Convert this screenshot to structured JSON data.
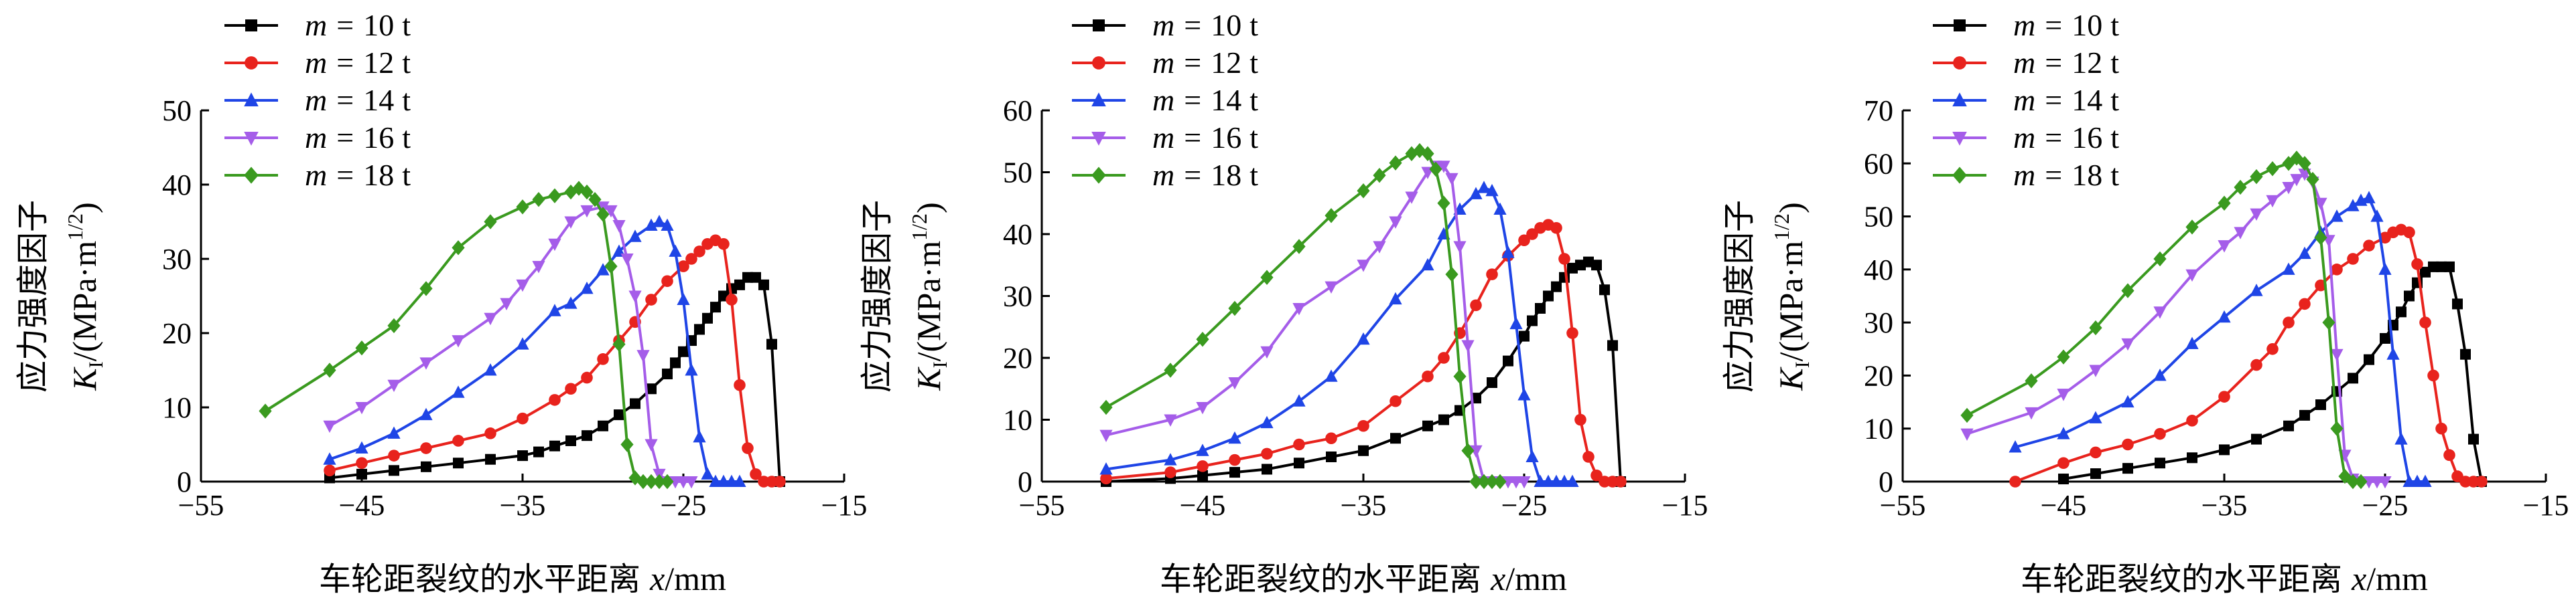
{
  "chart_data": [
    {
      "type": "line",
      "panel": "left",
      "title": "",
      "xlabel": "车轮距裂纹的水平距离 x/mm",
      "xlabel_text": "车轮距裂纹的水平距离",
      "xlabel_var": "x",
      "xlabel_unit": "/mm",
      "ylabel_line1": "应力强度因子",
      "ylabel_var": "K",
      "ylabel_sub": "I",
      "ylabel_unit": "/(MPa·m",
      "ylabel_exp": "1/2",
      "ylabel_close": ")",
      "xlim": [
        -55,
        -15
      ],
      "ylim": [
        0,
        50
      ],
      "xticks": [
        "−55",
        "−45",
        "−35",
        "−25",
        "−15"
      ],
      "xtick_values": [
        -55,
        -45,
        -35,
        -25,
        -15
      ],
      "yticks": [
        "0",
        "10",
        "20",
        "30",
        "40",
        "50"
      ],
      "ytick_values": [
        0,
        10,
        20,
        30,
        40,
        50
      ],
      "legend_position": "top-left",
      "series": [
        {
          "name": "m = 10 t",
          "var": "m",
          "eq": "=",
          "val": "10",
          "unit": "t",
          "color": "#000000",
          "marker": "square",
          "x": [
            -47,
            -45,
            -43,
            -41,
            -39,
            -37,
            -35,
            -34,
            -33,
            -32,
            -31,
            -30,
            -29,
            -28,
            -27,
            -26,
            -25.5,
            -25,
            -24.5,
            -24,
            -23.5,
            -23,
            -22.5,
            -22,
            -21.5,
            -21,
            -20.5,
            -20,
            -19.5,
            -19
          ],
          "y": [
            0.5,
            1,
            1.5,
            2,
            2.5,
            3,
            3.5,
            4,
            4.8,
            5.5,
            6.2,
            7.5,
            9,
            10.5,
            12.5,
            14.5,
            16,
            17.5,
            19,
            20.5,
            22,
            23.5,
            25,
            26,
            26.5,
            27.5,
            27.5,
            26.5,
            18.5,
            0
          ]
        },
        {
          "name": "m = 12 t",
          "var": "m",
          "eq": "=",
          "val": "12",
          "unit": "t",
          "color": "#e8231d",
          "marker": "circle",
          "x": [
            -47,
            -45,
            -43,
            -41,
            -39,
            -37,
            -35,
            -33,
            -32,
            -31,
            -30,
            -29,
            -28,
            -27,
            -26,
            -25,
            -24.5,
            -24,
            -23.5,
            -23,
            -22.5,
            -22,
            -21.5,
            -21,
            -20.5,
            -20,
            -19.5,
            -19
          ],
          "y": [
            1.5,
            2.5,
            3.5,
            4.5,
            5.5,
            6.5,
            8.5,
            11,
            12.5,
            14,
            16.5,
            19,
            21.5,
            24.5,
            27,
            29,
            30,
            31,
            32,
            32.5,
            32,
            24.5,
            13,
            4.5,
            1,
            0,
            0,
            0
          ]
        },
        {
          "name": "m = 14 t",
          "var": "m",
          "eq": "=",
          "val": "14",
          "unit": "t",
          "color": "#1f45e6",
          "marker": "triangle-up",
          "x": [
            -47,
            -45,
            -43,
            -41,
            -39,
            -37,
            -35,
            -33,
            -32,
            -31,
            -30,
            -29,
            -28,
            -27,
            -26.5,
            -26,
            -25.5,
            -25,
            -24.5,
            -24,
            -23.5,
            -23,
            -22.5,
            -22,
            -21.5
          ],
          "y": [
            3,
            4.5,
            6.5,
            9,
            12,
            15,
            18.5,
            23,
            24,
            26,
            28.5,
            31,
            33,
            34.5,
            35,
            34.5,
            31,
            24.5,
            15,
            6,
            1,
            0,
            0,
            0,
            0
          ]
        },
        {
          "name": "m = 16 t",
          "var": "m",
          "eq": "=",
          "val": "16",
          "unit": "t",
          "color": "#a55de9",
          "marker": "triangle-down",
          "x": [
            -47,
            -45,
            -43,
            -41,
            -39,
            -37,
            -36,
            -35,
            -34,
            -33,
            -32,
            -31,
            -30,
            -29.5,
            -29,
            -28.5,
            -28,
            -27.5,
            -27,
            -26.5,
            -26,
            -25.5,
            -25,
            -24.5
          ],
          "y": [
            7.5,
            10,
            13,
            16,
            19,
            22,
            24,
            26.5,
            29,
            32,
            35,
            36.5,
            37,
            36.5,
            34.5,
            30,
            25,
            17,
            5,
            1,
            0,
            0,
            0,
            0
          ]
        },
        {
          "name": "m = 18 t",
          "var": "m",
          "eq": "=",
          "val": "18",
          "unit": "t",
          "color": "#3a9a1f",
          "marker": "diamond",
          "x": [
            -51,
            -47,
            -45,
            -43,
            -41,
            -39,
            -37,
            -35,
            -34,
            -33,
            -32,
            -31.5,
            -31,
            -30.5,
            -30,
            -29.5,
            -29,
            -28.5,
            -28,
            -27.5,
            -27,
            -26.5,
            -26
          ],
          "y": [
            9.5,
            15,
            18,
            21,
            26,
            31.5,
            35,
            37,
            38,
            38.5,
            39,
            39.5,
            39,
            38,
            36,
            29,
            18.5,
            5,
            0.5,
            0,
            0,
            0,
            0
          ]
        }
      ]
    },
    {
      "type": "line",
      "panel": "middle",
      "title": "",
      "xlabel": "车轮距裂纹的水平距离 x/mm",
      "xlabel_text": "车轮距裂纹的水平距离",
      "xlabel_var": "x",
      "xlabel_unit": "/mm",
      "ylabel_line1": "应力强度因子",
      "ylabel_var": "K",
      "ylabel_sub": "I",
      "ylabel_unit": "/(MPa·m",
      "ylabel_exp": "1/2",
      "ylabel_close": ")",
      "xlim": [
        -55,
        -15
      ],
      "ylim": [
        0,
        60
      ],
      "xticks": [
        "−55",
        "−45",
        "−35",
        "−25",
        "−15"
      ],
      "xtick_values": [
        -55,
        -45,
        -35,
        -25,
        -15
      ],
      "yticks": [
        "0",
        "10",
        "20",
        "30",
        "40",
        "50",
        "60"
      ],
      "ytick_values": [
        0,
        10,
        20,
        30,
        40,
        50,
        60
      ],
      "legend_position": "top-left",
      "series": [
        {
          "name": "m = 10 t",
          "var": "m",
          "eq": "=",
          "val": "10",
          "unit": "t",
          "color": "#000000",
          "marker": "square",
          "x": [
            -51,
            -47,
            -45,
            -43,
            -41,
            -39,
            -37,
            -35,
            -33,
            -31,
            -30,
            -29,
            -28,
            -27,
            -26,
            -25,
            -24.5,
            -24,
            -23.5,
            -23,
            -22.5,
            -22,
            -21.5,
            -21,
            -20.5,
            -20,
            -19.5,
            -19
          ],
          "y": [
            0,
            0.5,
            1,
            1.5,
            2,
            3,
            4,
            5,
            7,
            9,
            10,
            11.5,
            13.5,
            16,
            19.5,
            23.5,
            26,
            28,
            30,
            31.5,
            33,
            34.5,
            35,
            35.5,
            35,
            31,
            22,
            0
          ]
        },
        {
          "name": "m = 12 t",
          "var": "m",
          "eq": "=",
          "val": "12",
          "unit": "t",
          "color": "#e8231d",
          "marker": "circle",
          "x": [
            -51,
            -47,
            -45,
            -43,
            -41,
            -39,
            -37,
            -35,
            -33,
            -31,
            -30,
            -29,
            -28,
            -27,
            -26,
            -25,
            -24.5,
            -24,
            -23.5,
            -23,
            -22.5,
            -22,
            -21.5,
            -21,
            -20.5,
            -20,
            -19.5,
            -19
          ],
          "y": [
            0.5,
            1.5,
            2.5,
            3.5,
            4.5,
            6,
            7,
            9,
            13,
            17,
            20,
            24,
            28.5,
            33.5,
            36.5,
            39,
            40,
            41,
            41.5,
            41,
            36,
            24,
            10,
            4,
            1,
            0,
            0,
            0
          ]
        },
        {
          "name": "m = 14 t",
          "var": "m",
          "eq": "=",
          "val": "14",
          "unit": "t",
          "color": "#1f45e6",
          "marker": "triangle-up",
          "x": [
            -51,
            -47,
            -45,
            -43,
            -41,
            -39,
            -37,
            -35,
            -33,
            -31,
            -30,
            -29,
            -28,
            -27.5,
            -27,
            -26.5,
            -26,
            -25.5,
            -25,
            -24.5,
            -24,
            -23.5,
            -23,
            -22.5,
            -22
          ],
          "y": [
            2,
            3.5,
            5,
            7,
            9.5,
            13,
            17,
            23,
            29.5,
            35,
            40,
            44,
            46.5,
            47.5,
            47,
            44,
            37,
            25.5,
            14,
            4,
            0,
            0,
            0,
            0,
            0
          ]
        },
        {
          "name": "m = 16 t",
          "var": "m",
          "eq": "=",
          "val": "16",
          "unit": "t",
          "color": "#a55de9",
          "marker": "triangle-down",
          "x": [
            -51,
            -47,
            -45,
            -43,
            -41,
            -39,
            -37,
            -35,
            -34,
            -33,
            -32,
            -31,
            -30.5,
            -30,
            -29.5,
            -29,
            -28.5,
            -28,
            -27.5,
            -27,
            -26.5,
            -26,
            -25.5,
            -25
          ],
          "y": [
            7.5,
            10,
            12,
            16,
            21,
            28,
            31.5,
            35,
            38,
            42,
            46,
            50,
            51,
            51,
            49,
            38,
            22,
            5,
            0,
            0,
            0,
            0,
            0,
            0
          ]
        },
        {
          "name": "m = 18 t",
          "var": "m",
          "eq": "=",
          "val": "18",
          "unit": "t",
          "color": "#3a9a1f",
          "marker": "diamond",
          "x": [
            -51,
            -47,
            -45,
            -43,
            -41,
            -39,
            -37,
            -35,
            -34,
            -33,
            -32,
            -31.5,
            -31,
            -30.5,
            -30,
            -29.5,
            -29,
            -28.5,
            -28,
            -27.5,
            -27,
            -26.5
          ],
          "y": [
            12,
            18,
            23,
            28,
            33,
            38,
            43,
            47,
            49.5,
            51.5,
            53,
            53.5,
            53,
            50.5,
            45,
            33.5,
            17,
            5,
            0,
            0,
            0,
            0
          ]
        }
      ]
    },
    {
      "type": "line",
      "panel": "right",
      "title": "",
      "xlabel": "车轮距裂纹的水平距离 x/mm",
      "xlabel_text": "车轮距裂纹的水平距离",
      "xlabel_var": "x",
      "xlabel_unit": "/mm",
      "ylabel_line1": "应力强度因子",
      "ylabel_var": "K",
      "ylabel_sub": "I",
      "ylabel_unit": "/(MPa·m",
      "ylabel_exp": "1/2",
      "ylabel_close": ")",
      "xlim": [
        -55,
        -15
      ],
      "ylim": [
        0,
        70
      ],
      "xticks": [
        "−55",
        "−45",
        "−35",
        "−25",
        "−15"
      ],
      "xtick_values": [
        -55,
        -45,
        -35,
        -25,
        -15
      ],
      "yticks": [
        "0",
        "10",
        "20",
        "30",
        "40",
        "50",
        "60",
        "70"
      ],
      "ytick_values": [
        0,
        10,
        20,
        30,
        40,
        50,
        60,
        70
      ],
      "legend_position": "top-left",
      "series": [
        {
          "name": "m = 10 t",
          "var": "m",
          "eq": "=",
          "val": "10",
          "unit": "t",
          "color": "#000000",
          "marker": "square",
          "x": [
            -45,
            -43,
            -41,
            -39,
            -37,
            -35,
            -33,
            -31,
            -30,
            -29,
            -28,
            -27,
            -26,
            -25,
            -24.5,
            -24,
            -23.5,
            -23,
            -22.5,
            -22,
            -21.5,
            -21,
            -20.5,
            -20,
            -19.5,
            -19
          ],
          "y": [
            0.5,
            1.5,
            2.5,
            3.5,
            4.5,
            6,
            8,
            10.5,
            12.5,
            14.5,
            17,
            19.5,
            23,
            27,
            29.5,
            32,
            35,
            37.5,
            39.5,
            40.5,
            40.5,
            40.5,
            33.5,
            24,
            8,
            0
          ]
        },
        {
          "name": "m = 12 t",
          "var": "m",
          "eq": "=",
          "val": "12",
          "unit": "t",
          "color": "#e8231d",
          "marker": "circle",
          "x": [
            -48,
            -45,
            -43,
            -41,
            -39,
            -37,
            -35,
            -33,
            -32,
            -31,
            -30,
            -29,
            -28,
            -27,
            -26,
            -25,
            -24.5,
            -24,
            -23.5,
            -23,
            -22.5,
            -22,
            -21.5,
            -21,
            -20.5,
            -20,
            -19.5,
            -19
          ],
          "y": [
            0,
            3.5,
            5.5,
            7,
            9,
            11.5,
            16,
            22,
            25,
            30,
            33.5,
            37,
            40,
            42,
            44.5,
            46,
            47,
            47.5,
            47,
            41,
            30,
            20,
            10,
            5,
            1,
            0,
            0,
            0
          ]
        },
        {
          "name": "m = 14 t",
          "var": "m",
          "eq": "=",
          "val": "14",
          "unit": "t",
          "color": "#1f45e6",
          "marker": "triangle-up",
          "x": [
            -48,
            -45,
            -43,
            -41,
            -39,
            -37,
            -35,
            -33,
            -31,
            -30,
            -29,
            -28,
            -27,
            -26.5,
            -26,
            -25.5,
            -25,
            -24.5,
            -24,
            -23.5,
            -23,
            -22.5
          ],
          "y": [
            6.5,
            9,
            12,
            15,
            20,
            26,
            31,
            36,
            40,
            43,
            47,
            50,
            52,
            53,
            53.5,
            50,
            40,
            24,
            8,
            0,
            0,
            0
          ]
        },
        {
          "name": "m = 16 t",
          "var": "m",
          "eq": "=",
          "val": "16",
          "unit": "t",
          "color": "#a55de9",
          "marker": "triangle-down",
          "x": [
            -51,
            -47,
            -45,
            -43,
            -41,
            -39,
            -37,
            -35,
            -34,
            -33,
            -32,
            -31,
            -30.5,
            -30,
            -29.5,
            -29,
            -28.5,
            -28,
            -27.5,
            -27,
            -26.5,
            -26,
            -25.5,
            -25
          ],
          "y": [
            9,
            13,
            16.5,
            21,
            26,
            32,
            39,
            44.5,
            47,
            50.5,
            53,
            55.5,
            57,
            58,
            56.5,
            52.5,
            45.5,
            24,
            5,
            0.5,
            0,
            0,
            0,
            0
          ]
        },
        {
          "name": "m = 18 t",
          "var": "m",
          "eq": "=",
          "val": "18",
          "unit": "t",
          "color": "#3a9a1f",
          "marker": "diamond",
          "x": [
            -51,
            -47,
            -45,
            -43,
            -41,
            -39,
            -37,
            -35,
            -34,
            -33,
            -32,
            -31,
            -30.5,
            -30,
            -29.5,
            -29,
            -28.5,
            -28,
            -27.5,
            -27,
            -26.5
          ],
          "y": [
            12.5,
            19,
            23.5,
            29,
            36,
            42,
            48,
            52.5,
            55.5,
            57.5,
            59,
            60,
            61,
            60,
            57,
            46,
            30,
            10,
            1,
            0,
            0
          ]
        }
      ]
    }
  ]
}
